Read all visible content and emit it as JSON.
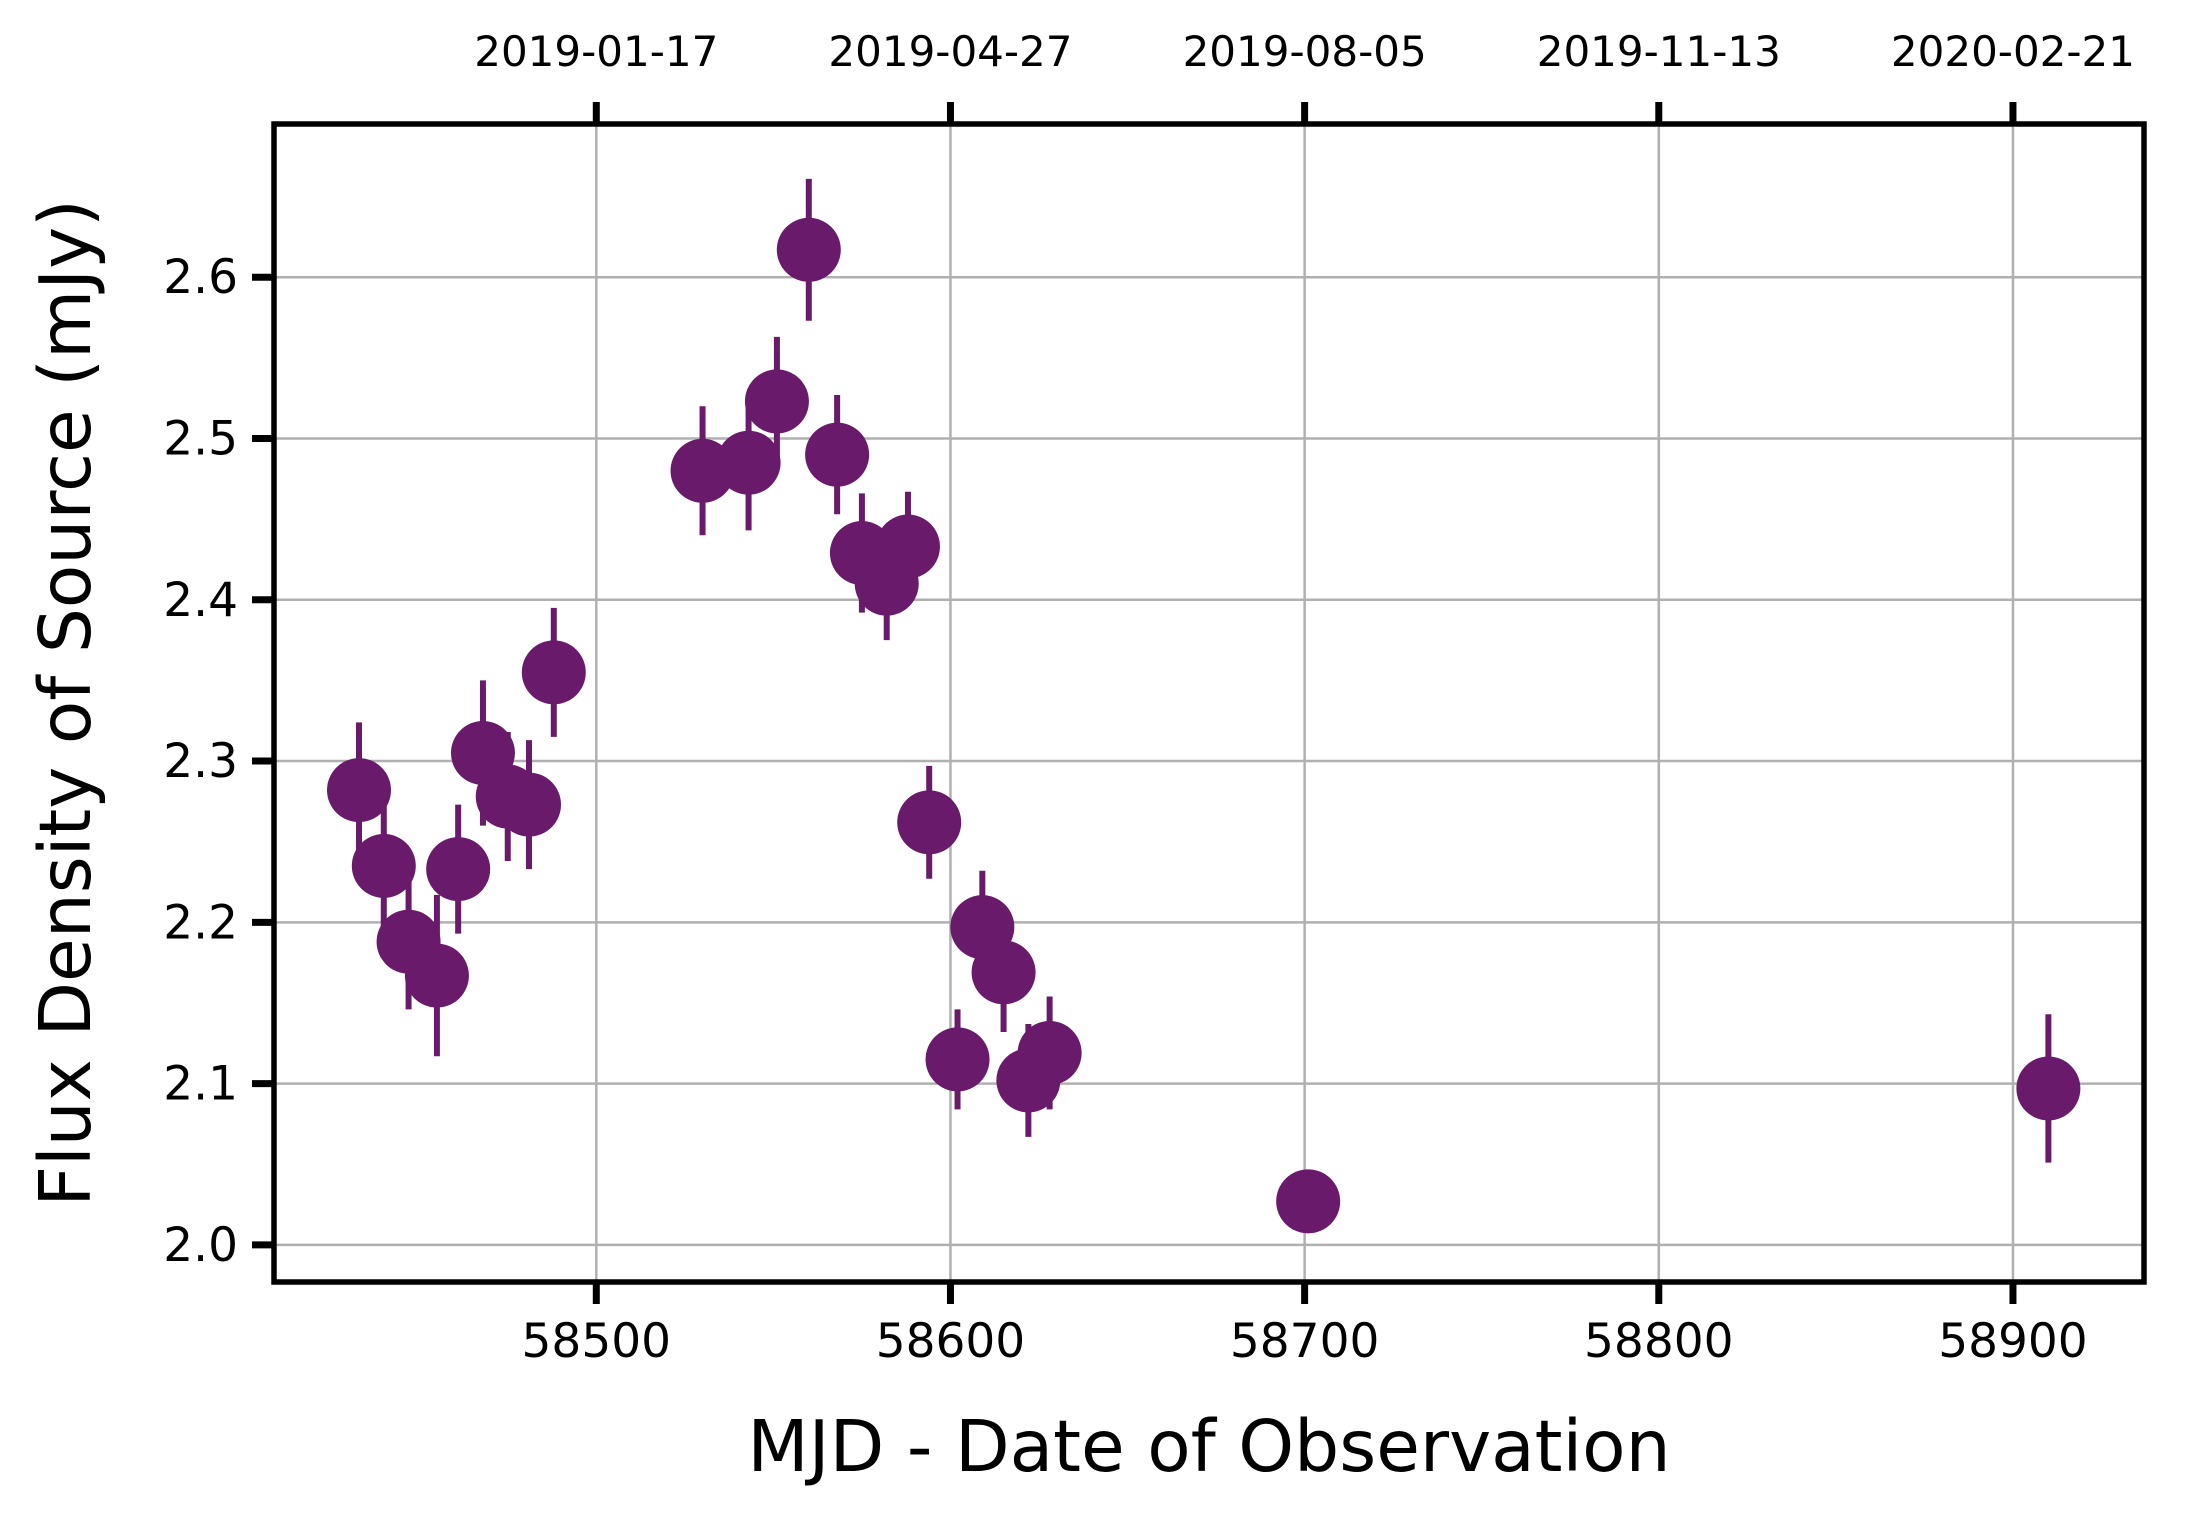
{
  "chart_data": {
    "type": "scatter",
    "xlabel": "MJD - Date of Observation",
    "ylabel": "Flux Density of Source (mJy)",
    "xlim": [
      58409,
      58937
    ],
    "ylim": [
      1.977,
      2.695
    ],
    "xticks": [
      58500,
      58600,
      58700,
      58800,
      58900
    ],
    "yticks": [
      2.0,
      2.1,
      2.2,
      2.3,
      2.4,
      2.5,
      2.6
    ],
    "ytick_labels": [
      "2.0",
      "2.1",
      "2.2",
      "2.3",
      "2.4",
      "2.5",
      "2.6"
    ],
    "top_axis_ticks": [
      {
        "mjd": 58500,
        "label": "2019-01-17"
      },
      {
        "mjd": 58600,
        "label": "2019-04-27"
      },
      {
        "mjd": 58700,
        "label": "2019-08-05"
      },
      {
        "mjd": 58800,
        "label": "2019-11-13"
      },
      {
        "mjd": 58900,
        "label": "2020-02-21"
      }
    ],
    "grid": true,
    "marker_color": "#6a1a6b",
    "points": [
      {
        "x": 58433,
        "y": 2.282,
        "err": 0.042
      },
      {
        "x": 58440,
        "y": 2.235,
        "err": 0.04
      },
      {
        "x": 58447,
        "y": 2.188,
        "err": 0.042
      },
      {
        "x": 58455,
        "y": 2.167,
        "err": 0.05
      },
      {
        "x": 58461,
        "y": 2.233,
        "err": 0.04
      },
      {
        "x": 58468,
        "y": 2.305,
        "err": 0.045
      },
      {
        "x": 58475,
        "y": 2.278,
        "err": 0.04
      },
      {
        "x": 58481,
        "y": 2.273,
        "err": 0.04
      },
      {
        "x": 58488,
        "y": 2.355,
        "err": 0.04
      },
      {
        "x": 58530,
        "y": 2.48,
        "err": 0.04
      },
      {
        "x": 58543,
        "y": 2.485,
        "err": 0.042
      },
      {
        "x": 58551,
        "y": 2.523,
        "err": 0.04
      },
      {
        "x": 58560,
        "y": 2.617,
        "err": 0.044
      },
      {
        "x": 58568,
        "y": 2.49,
        "err": 0.037
      },
      {
        "x": 58575,
        "y": 2.429,
        "err": 0.037
      },
      {
        "x": 58582,
        "y": 2.41,
        "err": 0.035
      },
      {
        "x": 58588,
        "y": 2.433,
        "err": 0.034
      },
      {
        "x": 58594,
        "y": 2.262,
        "err": 0.035
      },
      {
        "x": 58602,
        "y": 2.115,
        "err": 0.031
      },
      {
        "x": 58609,
        "y": 2.197,
        "err": 0.035
      },
      {
        "x": 58615,
        "y": 2.169,
        "err": 0.037
      },
      {
        "x": 58622,
        "y": 2.102,
        "err": 0.035
      },
      {
        "x": 58628,
        "y": 2.119,
        "err": 0.035
      },
      {
        "x": 58701,
        "y": 2.027,
        "err": 0.0
      },
      {
        "x": 58910,
        "y": 2.097,
        "err": 0.046
      }
    ]
  }
}
